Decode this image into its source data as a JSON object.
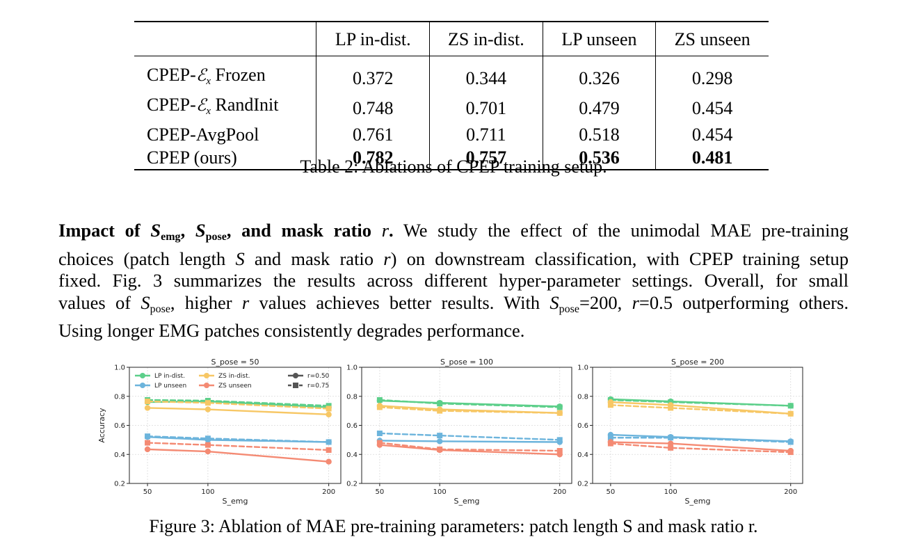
{
  "table": {
    "headers": [
      "",
      "LP in-dist.",
      "ZS in-dist.",
      "LP unseen",
      "ZS unseen"
    ],
    "rows": [
      {
        "prefix": "CPEP-",
        "math": "ℰ",
        "sub": "x",
        "suffix": " Frozen",
        "values": [
          "0.372",
          "0.344",
          "0.326",
          "0.298"
        ]
      },
      {
        "prefix": "CPEP-",
        "math": "ℰ",
        "sub": "x",
        "suffix": " RandInit",
        "values": [
          "0.748",
          "0.701",
          "0.479",
          "0.454"
        ]
      },
      {
        "prefix": "CPEP-AvgPool",
        "math": "",
        "sub": "",
        "suffix": "",
        "values": [
          "0.761",
          "0.711",
          "0.518",
          "0.454"
        ]
      },
      {
        "prefix": "CPEP (ours)",
        "math": "",
        "sub": "",
        "suffix": "",
        "values": [
          "0.782",
          "0.757",
          "0.536",
          "0.481"
        ]
      }
    ],
    "caption": "Table 2: Ablations of CPEP training setup."
  },
  "paragraph": {
    "heading_a": "Impact of ",
    "heading_emg_sym": "S",
    "heading_emg_sub": "emg",
    "heading_sep": ", ",
    "heading_pose_sym": "S",
    "heading_pose_sub": "pose",
    "heading_b": ", and mask ratio ",
    "heading_r": "r",
    "heading_c": ".",
    "l1_a": " We study the effect of the unimodal MAE pre-training",
    "l2_a": "choices (patch length ",
    "l2_s": "S",
    "l2_b": " and mask ratio ",
    "l2_r": "r",
    "l2_c": ") on downstream classification, with CPEP training setup",
    "l3": "fixed. Fig. 3 summarizes the results across different hyper-parameter settings. Overall, for small",
    "l4_a": "values of ",
    "l4_s": "S",
    "l4_sub": "pose",
    "l4_b": ", higher ",
    "l4_r": "r",
    "l4_c": " values achieves better results. With ",
    "l4_s2": "S",
    "l4_sub2": "pose",
    "l4_d": "=200, ",
    "l4_r2": "r",
    "l4_e": "=0.5 outperforming others.",
    "l5": "Using longer EMG patches consistently degrades performance."
  },
  "figure_caption": "Figure 3: Ablation of MAE pre-training parameters: patch length S and mask ratio r.",
  "chart_data": [
    {
      "type": "line",
      "title": "S_pose = 50",
      "xlabel": "S_emg",
      "ylabel": "Accuracy",
      "x": [
        50,
        100,
        200
      ],
      "xticks": [
        "50",
        "100",
        "200"
      ],
      "ylim": [
        0.2,
        1.0
      ],
      "yticks": [
        "0.2",
        "0.4",
        "0.6",
        "0.8",
        "1.0"
      ],
      "grid": true,
      "legend": "top",
      "series": [
        {
          "name": "LP in-dist.",
          "r": "0.50",
          "color": "#5ccf8a",
          "values": [
            0.76,
            0.765,
            0.725
          ]
        },
        {
          "name": "LP in-dist.",
          "r": "0.75",
          "color": "#5ccf8a",
          "values": [
            0.775,
            0.77,
            0.735
          ]
        },
        {
          "name": "ZS in-dist.",
          "r": "0.50",
          "color": "#f7c765",
          "values": [
            0.72,
            0.71,
            0.675
          ]
        },
        {
          "name": "ZS in-dist.",
          "r": "0.75",
          "color": "#f7c765",
          "values": [
            0.765,
            0.755,
            0.715
          ]
        },
        {
          "name": "LP unseen",
          "r": "0.50",
          "color": "#6cb4dc",
          "values": [
            0.52,
            0.5,
            0.485
          ]
        },
        {
          "name": "LP unseen",
          "r": "0.75",
          "color": "#6cb4dc",
          "values": [
            0.525,
            0.51,
            0.485
          ]
        },
        {
          "name": "ZS unseen",
          "r": "0.50",
          "color": "#f48a73",
          "values": [
            0.435,
            0.42,
            0.35
          ]
        },
        {
          "name": "ZS unseen",
          "r": "0.75",
          "color": "#f48a73",
          "values": [
            0.48,
            0.465,
            0.43
          ]
        }
      ]
    },
    {
      "type": "line",
      "title": "S_pose = 100",
      "xlabel": "S_emg",
      "ylabel": "",
      "x": [
        50,
        100,
        200
      ],
      "xticks": [
        "50",
        "100",
        "200"
      ],
      "ylim": [
        0.2,
        1.0
      ],
      "yticks": [
        "0.2",
        "0.4",
        "0.6",
        "0.8",
        "1.0"
      ],
      "grid": true,
      "legend": "none",
      "series": [
        {
          "name": "LP in-dist.",
          "r": "0.50",
          "color": "#5ccf8a",
          "values": [
            0.77,
            0.755,
            0.73
          ]
        },
        {
          "name": "LP in-dist.",
          "r": "0.75",
          "color": "#5ccf8a",
          "values": [
            0.775,
            0.75,
            0.725
          ]
        },
        {
          "name": "ZS in-dist.",
          "r": "0.50",
          "color": "#f7c765",
          "values": [
            0.735,
            0.71,
            0.685
          ]
        },
        {
          "name": "ZS in-dist.",
          "r": "0.75",
          "color": "#f7c765",
          "values": [
            0.725,
            0.7,
            0.685
          ]
        },
        {
          "name": "LP unseen",
          "r": "0.50",
          "color": "#6cb4dc",
          "values": [
            0.495,
            0.49,
            0.485
          ]
        },
        {
          "name": "LP unseen",
          "r": "0.75",
          "color": "#6cb4dc",
          "values": [
            0.545,
            0.53,
            0.5
          ]
        },
        {
          "name": "ZS unseen",
          "r": "0.50",
          "color": "#f48a73",
          "values": [
            0.465,
            0.43,
            0.4
          ]
        },
        {
          "name": "ZS unseen",
          "r": "0.75",
          "color": "#f48a73",
          "values": [
            0.48,
            0.435,
            0.425
          ]
        }
      ]
    },
    {
      "type": "line",
      "title": "S_pose = 200",
      "xlabel": "S_emg",
      "ylabel": "",
      "x": [
        50,
        100,
        200
      ],
      "xticks": [
        "50",
        "100",
        "200"
      ],
      "ylim": [
        0.2,
        1.0
      ],
      "yticks": [
        "0.2",
        "0.4",
        "0.6",
        "0.8",
        "1.0"
      ],
      "grid": true,
      "legend": "none",
      "series": [
        {
          "name": "LP in-dist.",
          "r": "0.50",
          "color": "#5ccf8a",
          "values": [
            0.78,
            0.765,
            0.735
          ]
        },
        {
          "name": "LP in-dist.",
          "r": "0.75",
          "color": "#5ccf8a",
          "values": [
            0.775,
            0.76,
            0.735
          ]
        },
        {
          "name": "ZS in-dist.",
          "r": "0.50",
          "color": "#f7c765",
          "values": [
            0.76,
            0.74,
            0.68
          ]
        },
        {
          "name": "ZS in-dist.",
          "r": "0.75",
          "color": "#f7c765",
          "values": [
            0.74,
            0.72,
            0.68
          ]
        },
        {
          "name": "LP unseen",
          "r": "0.50",
          "color": "#6cb4dc",
          "values": [
            0.535,
            0.52,
            0.49
          ]
        },
        {
          "name": "LP unseen",
          "r": "0.75",
          "color": "#6cb4dc",
          "values": [
            0.515,
            0.515,
            0.485
          ]
        },
        {
          "name": "ZS unseen",
          "r": "0.50",
          "color": "#f48a73",
          "values": [
            0.485,
            0.475,
            0.425
          ]
        },
        {
          "name": "ZS unseen",
          "r": "0.75",
          "color": "#f48a73",
          "values": [
            0.475,
            0.445,
            0.415
          ]
        }
      ]
    }
  ],
  "legend": {
    "items": [
      {
        "label": "LP in-dist.",
        "color": "#5ccf8a"
      },
      {
        "label": "ZS in-dist.",
        "color": "#f7c765"
      },
      {
        "label": "LP unseen",
        "color": "#6cb4dc"
      },
      {
        "label": "ZS unseen",
        "color": "#f48a73"
      }
    ],
    "styles": [
      {
        "label": "r=0.50",
        "dash": false
      },
      {
        "label": "r=0.75",
        "dash": true
      }
    ]
  }
}
